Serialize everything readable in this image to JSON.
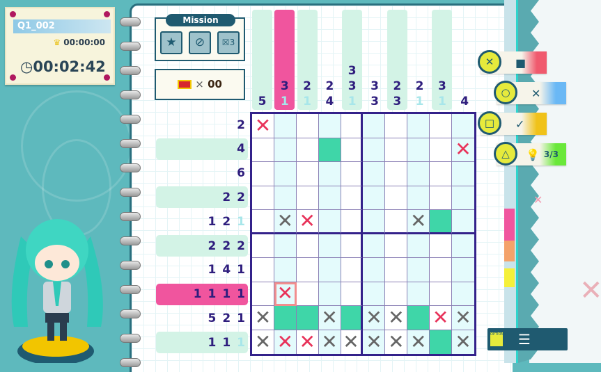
{
  "info_card": {
    "puzzle_id": "Q1_002",
    "best_time": "00:00:00",
    "elapsed_time": "00:02:42",
    "crown_icon": "crown-icon",
    "clock_icon": "clock-icon"
  },
  "mission": {
    "title": "Mission",
    "icons": [
      "star-icon",
      "no-hint-bulb-icon",
      "mistakes-limit-3-icon"
    ],
    "mistake_limit": "3"
  },
  "reward": {
    "icon": "treasure-chest-icon",
    "multiplier": "×",
    "count": "00"
  },
  "puzzle": {
    "size": 10,
    "column_clues": [
      {
        "values": [
          "5"
        ],
        "done": [
          false
        ],
        "highlight": "mint"
      },
      {
        "values": [
          "3",
          "1"
        ],
        "done": [
          false,
          true
        ],
        "highlight": "pink"
      },
      {
        "values": [
          "2",
          "1"
        ],
        "done": [
          false,
          true
        ],
        "highlight": "mint"
      },
      {
        "values": [
          "2",
          "4"
        ],
        "done": [
          false,
          false
        ],
        "highlight": ""
      },
      {
        "values": [
          "3",
          "3",
          "1"
        ],
        "done": [
          false,
          false,
          true
        ],
        "highlight": "mint"
      },
      {
        "values": [
          "3",
          "3"
        ],
        "done": [
          false,
          false
        ],
        "highlight": ""
      },
      {
        "values": [
          "2",
          "3"
        ],
        "done": [
          false,
          false
        ],
        "highlight": "mint"
      },
      {
        "values": [
          "2",
          "1"
        ],
        "done": [
          false,
          true
        ],
        "highlight": ""
      },
      {
        "values": [
          "3",
          "1"
        ],
        "done": [
          false,
          true
        ],
        "highlight": "mint"
      },
      {
        "values": [
          "4"
        ],
        "done": [
          false
        ],
        "highlight": ""
      }
    ],
    "row_clues": [
      {
        "values": [
          "2"
        ],
        "done": [
          false
        ],
        "highlight": ""
      },
      {
        "values": [
          "4"
        ],
        "done": [
          false
        ],
        "highlight": "mint"
      },
      {
        "values": [
          "6"
        ],
        "done": [
          false
        ],
        "highlight": ""
      },
      {
        "values": [
          "2",
          "2"
        ],
        "done": [
          false,
          false
        ],
        "highlight": "mint"
      },
      {
        "values": [
          "1",
          "2",
          "1"
        ],
        "done": [
          false,
          false,
          true
        ],
        "highlight": ""
      },
      {
        "values": [
          "2",
          "2",
          "2"
        ],
        "done": [
          false,
          false,
          false
        ],
        "highlight": "mint"
      },
      {
        "values": [
          "1",
          "4",
          "1"
        ],
        "done": [
          false,
          false,
          false
        ],
        "highlight": ""
      },
      {
        "values": [
          "1",
          "1",
          "1",
          "1"
        ],
        "done": [
          false,
          false,
          false,
          false
        ],
        "highlight": "pink"
      },
      {
        "values": [
          "5",
          "2",
          "1"
        ],
        "done": [
          false,
          false,
          false
        ],
        "highlight": ""
      },
      {
        "values": [
          "1",
          "1",
          "1"
        ],
        "done": [
          false,
          false,
          true
        ],
        "highlight": "mint"
      }
    ],
    "cells": [
      [
        "R",
        "",
        "",
        "",
        "",
        "",
        "",
        "",
        "",
        ""
      ],
      [
        "",
        "",
        "",
        "F",
        "",
        "",
        "",
        "",
        "",
        "R"
      ],
      [
        "",
        "",
        "",
        "",
        "",
        "",
        "",
        "",
        "",
        ""
      ],
      [
        "",
        "",
        "",
        "",
        "",
        "",
        "",
        "",
        "",
        ""
      ],
      [
        "",
        "X",
        "R",
        "",
        "",
        "",
        "",
        "X",
        "F",
        ""
      ],
      [
        "",
        "",
        "",
        "",
        "",
        "",
        "",
        "",
        "",
        ""
      ],
      [
        "",
        "",
        "",
        "",
        "",
        "",
        "",
        "",
        "",
        ""
      ],
      [
        "",
        "R",
        "",
        "",
        "",
        "",
        "",
        "",
        "",
        ""
      ],
      [
        "X",
        "F",
        "F",
        "X",
        "F",
        "X",
        "X",
        "F",
        "R",
        "X"
      ],
      [
        "X",
        "R",
        "R",
        "X",
        "X",
        "X",
        "X",
        "X",
        "F",
        "X"
      ]
    ],
    "cursor": {
      "row": 8,
      "col": 2
    },
    "colors": {
      "filled": "#3fd6a8",
      "mistake": "#e8335a",
      "cross": "#666666",
      "highlight_pink": "#f0559e",
      "highlight_mint": "#d3f3e6",
      "grid_border": "#33218a"
    }
  },
  "controls": [
    {
      "button": "cross-button",
      "glyph": "✕",
      "action_glyph": "■",
      "action": "fill-icon",
      "color": "#f05a6e"
    },
    {
      "button": "circle-button",
      "glyph": "○",
      "action_glyph": "✕",
      "action": "cross-mark-icon",
      "color": "#6ab8f5"
    },
    {
      "button": "square-button",
      "glyph": "□",
      "action_glyph": "✓",
      "action": "check-icon",
      "color": "#f0c21a"
    },
    {
      "button": "triangle-button",
      "glyph": "△",
      "action_glyph": "💡",
      "action": "hint-bulb-icon",
      "label": "3/3",
      "color": "#6ae83a"
    }
  ],
  "options": {
    "key_label": "OPTIONS",
    "icon": "menu-list-icon",
    "glyph": "☰"
  }
}
